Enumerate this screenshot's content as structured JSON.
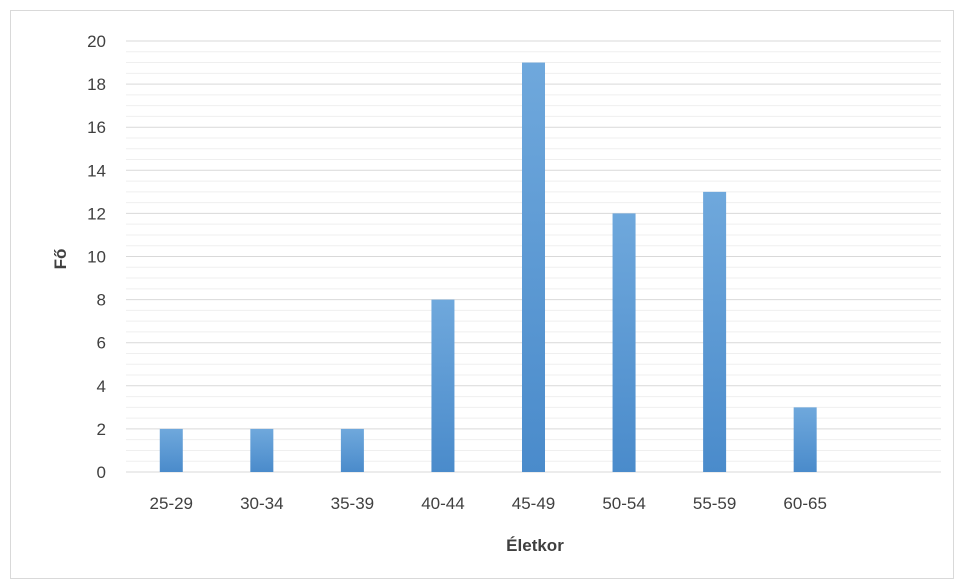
{
  "chart_data": {
    "type": "bar",
    "title": "",
    "xlabel": "Életkor",
    "ylabel": "Fő",
    "categories": [
      "25-29",
      "30-34",
      "35-39",
      "40-44",
      "45-49",
      "50-54",
      "55-59",
      "60-65",
      ""
    ],
    "values": [
      2,
      2,
      2,
      8,
      19,
      12,
      13,
      3,
      null
    ],
    "ylim": [
      0,
      20
    ],
    "yticks": [
      0,
      2,
      4,
      6,
      8,
      10,
      12,
      14,
      16,
      18,
      20
    ],
    "grid": true,
    "minor_grid": true,
    "legend": "none",
    "colors": {
      "bar": "#5b9bd5",
      "bar_top": "#6fa8dc",
      "bar_bottom": "#4a8bcb",
      "major_grid": "#d9d9d9",
      "minor_grid": "#efefef",
      "text": "#404040"
    }
  }
}
